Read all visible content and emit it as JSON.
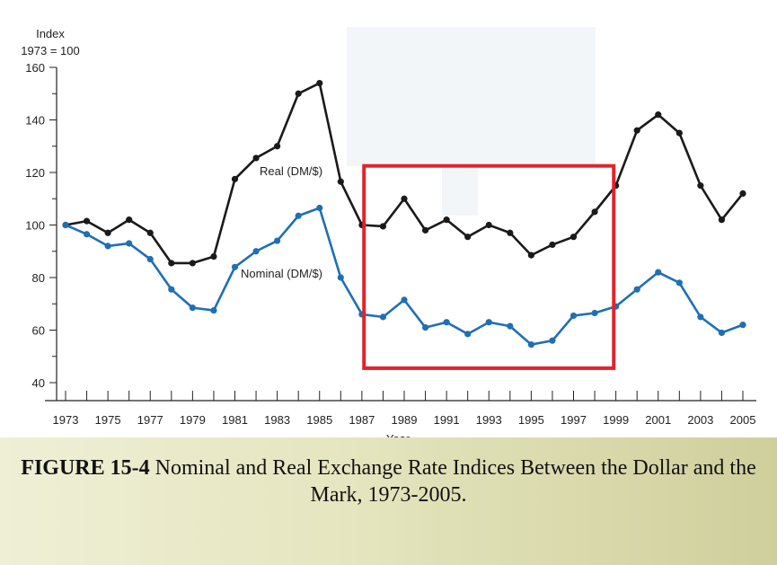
{
  "figure": {
    "number": "FIGURE 15-4",
    "caption": "Nominal and Real Exchange Rate Indices Between the Dollar and the Mark, 1973-2005."
  },
  "chart_data": {
    "type": "line",
    "ylabel_line1": "Index",
    "ylabel_line2": "1973 = 100",
    "xlabel": "Year",
    "xlim": [
      1973,
      2005
    ],
    "ylim": [
      40,
      160
    ],
    "yticks": [
      40,
      60,
      80,
      100,
      120,
      140,
      160
    ],
    "xticks": [
      1973,
      1975,
      1977,
      1979,
      1981,
      1983,
      1985,
      1987,
      1989,
      1991,
      1993,
      1995,
      1997,
      1999,
      2001,
      2003,
      2005
    ],
    "x": [
      1973,
      1974,
      1975,
      1976,
      1977,
      1978,
      1979,
      1980,
      1981,
      1982,
      1983,
      1984,
      1985,
      1986,
      1987,
      1988,
      1989,
      1990,
      1991,
      1992,
      1993,
      1994,
      1995,
      1996,
      1997,
      1998,
      1999,
      2000,
      2001,
      2002,
      2003,
      2004,
      2005
    ],
    "series": [
      {
        "name": "Real (DM/$)",
        "color": "#1a1a1a",
        "values": [
          100,
          101.5,
          97,
          102,
          97,
          85.5,
          85.5,
          88,
          117.5,
          125.5,
          130,
          150,
          154,
          116.5,
          100,
          99.5,
          110,
          98,
          102,
          95.5,
          100,
          97,
          88.5,
          92.5,
          95.5,
          105,
          115,
          136,
          142,
          135,
          115,
          102,
          112
        ]
      },
      {
        "name": "Nominal (DM/$)",
        "color": "#1f6fb5",
        "values": [
          100,
          96.5,
          92,
          93,
          87,
          75.5,
          68.5,
          67.5,
          84,
          90,
          94,
          103.5,
          106.5,
          80,
          66,
          65,
          71.5,
          61,
          63,
          58.5,
          63,
          61.5,
          54.5,
          56,
          65.5,
          66.5,
          69,
          75.5,
          82,
          78,
          65,
          59,
          62
        ]
      }
    ],
    "annotation": {
      "type": "highlight-box",
      "color": "#e0242b",
      "x_range": [
        1987.1,
        1998.9
      ],
      "y_range": [
        45.5,
        122.5
      ]
    }
  }
}
